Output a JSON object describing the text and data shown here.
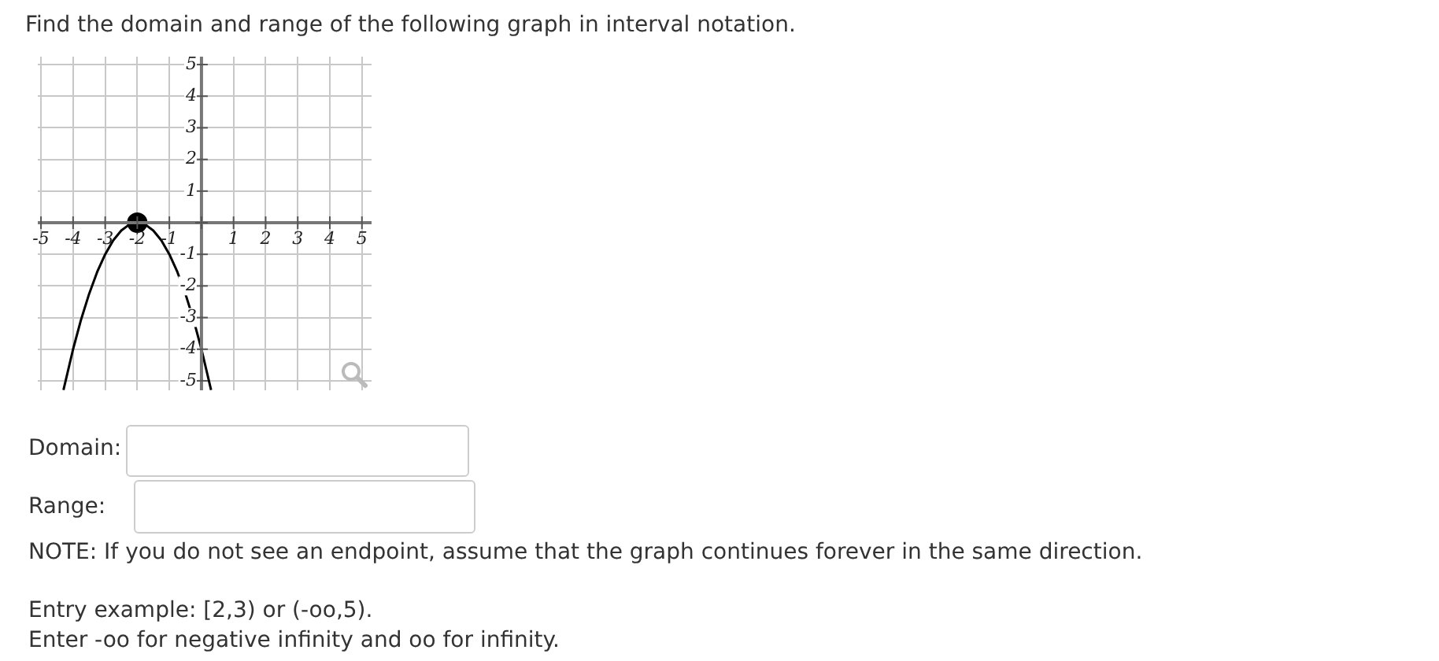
{
  "chart_data": {
    "type": "line",
    "title": "Find the domain and range of the following graph in interval notation.",
    "xlim": [
      -5.1,
      5.3
    ],
    "ylim": [
      -5.3,
      5.25
    ],
    "xticks": [
      -5,
      -4,
      -3,
      -2,
      -1,
      {
        "value": 0,
        "label": null
      },
      1,
      2,
      3,
      4,
      5
    ],
    "yticks": [
      -5,
      -4,
      -3,
      -2,
      -1,
      {
        "value": 0,
        "label": null
      },
      1,
      2,
      3,
      4,
      5
    ],
    "grid": true,
    "legend": false,
    "series": [
      {
        "type": "line",
        "color": "#000000",
        "marker": "none",
        "line_style": "solid",
        "x": [
          -4.3,
          -4,
          -3.75,
          -3.5,
          -3.25,
          -3,
          -2.75,
          -2.5,
          -2.25,
          -2,
          -1.75,
          -1.5,
          -1.25,
          -1,
          -0.75,
          -0.5,
          -0.25,
          0,
          0.3
        ],
        "values": [
          -5.29,
          -4,
          -3.06,
          -2.25,
          -1.56,
          -1,
          -0.56,
          -0.25,
          -0.06,
          0,
          -0.06,
          -0.25,
          -0.56,
          -1,
          -1.56,
          -2.25,
          -3.06,
          -4,
          -5.29
        ]
      },
      {
        "type": "scatter",
        "color": "#000000",
        "marker": "circle",
        "x": [
          -2
        ],
        "values": [
          0
        ]
      }
    ],
    "annotations": [
      "Domain:",
      "Range:",
      "NOTE: If you do not see an endpoint, assume that the graph continues forever in the same direction.",
      "Entry example: [2,3) or (-oo,5).",
      "Enter -oo for negative infinity and oo for infinity."
    ]
  }
}
